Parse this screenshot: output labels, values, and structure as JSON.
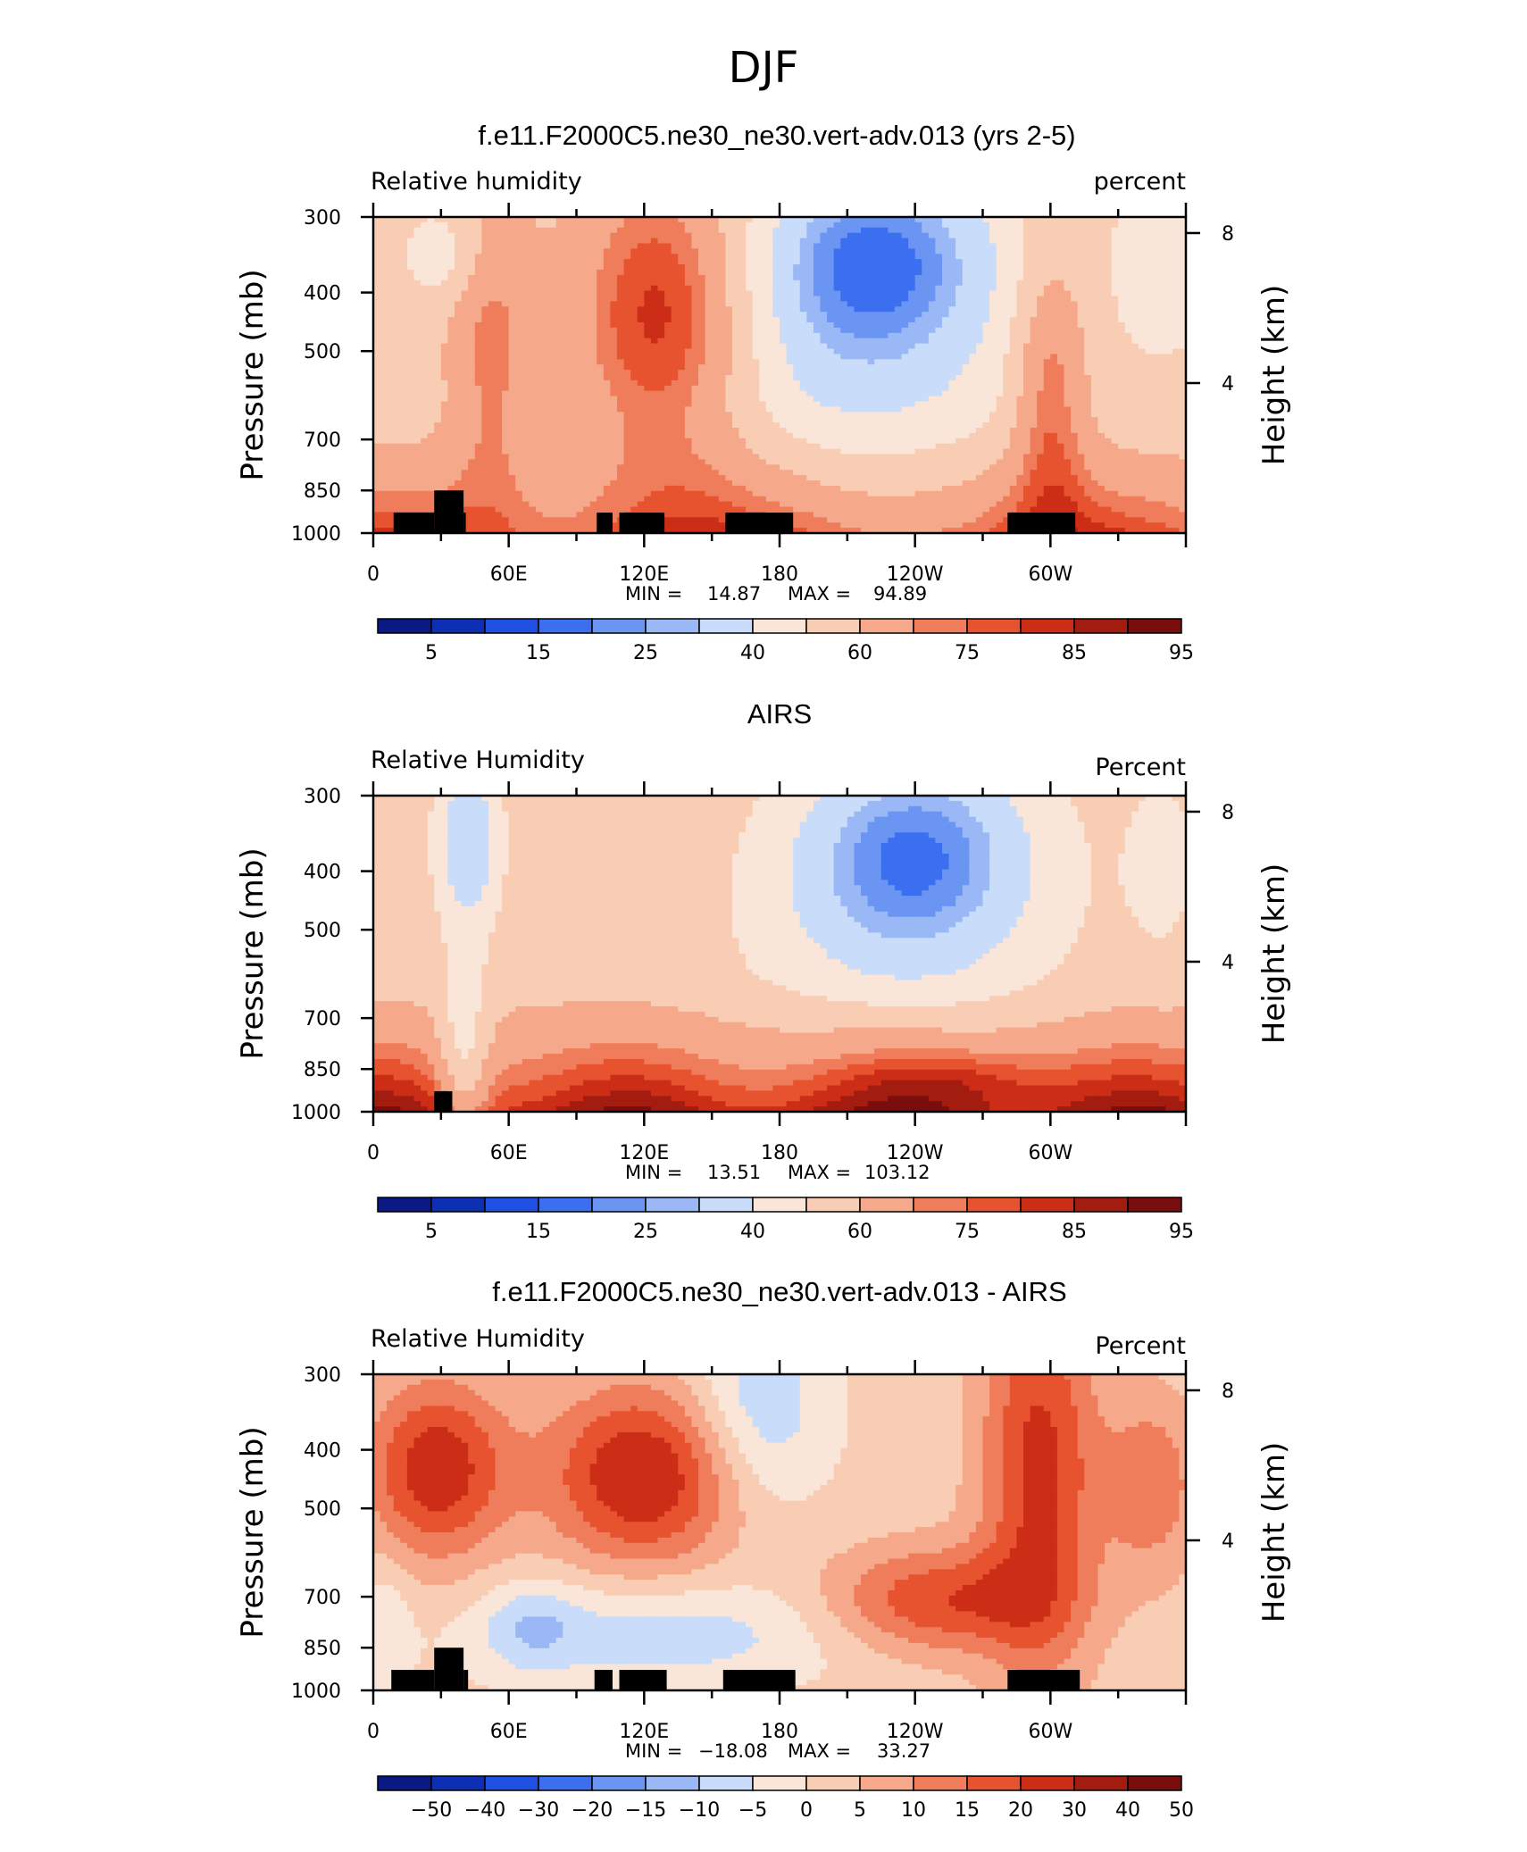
{
  "figure_title": "DJF",
  "colors": {
    "rh_palette": [
      "#0b1a82",
      "#0d2fb4",
      "#1f4fe3",
      "#3b6ff0",
      "#6b95f2",
      "#9ab8f5",
      "#c9dcfa",
      "#f9e6d9",
      "#f9cdb4",
      "#f5a98a",
      "#ef7c5a",
      "#e7532f",
      "#cc2d16",
      "#a21d10",
      "#7a0d0d"
    ]
  },
  "chart_data": [
    {
      "type": "heatmap",
      "title": "f.e11.F2000C5.ne30_ne30.vert-adv.013 (yrs 2-5)",
      "left_label": "Relative  humidity",
      "right_label": "percent",
      "ylabel": "Pressure  (mb)",
      "ylabel2": "Height  (km)",
      "x_ticks": [
        "0",
        "60E",
        "120E",
        "180",
        "120W",
        "60W"
      ],
      "x_tick_values": [
        0,
        60,
        120,
        180,
        240,
        300
      ],
      "xlim": [
        0,
        360
      ],
      "y_ticks": [
        "300",
        "400",
        "500",
        "700",
        "850",
        "1000"
      ],
      "y_tick_values": [
        300,
        400,
        500,
        700,
        850,
        1000
      ],
      "ylim": [
        1000,
        300
      ],
      "y2_ticks": [
        "4",
        "8"
      ],
      "y2_tick_values": [
        4,
        8
      ],
      "min_label": "MIN =",
      "min_value": "14.87",
      "max_label": "MAX =",
      "max_value": "94.89",
      "cbar_levels": [
        0,
        5,
        10,
        15,
        20,
        25,
        30,
        40,
        50,
        60,
        70,
        75,
        80,
        85,
        90,
        95
      ],
      "cbar_labels": [
        "5",
        "15",
        "25",
        "40",
        "60",
        "75",
        "85",
        "95"
      ],
      "cbar_label_values": [
        5,
        15,
        25,
        40,
        60,
        75,
        85,
        95
      ],
      "terrain": [
        [
          9,
          27,
          925
        ],
        [
          27,
          40,
          850
        ],
        [
          40,
          41,
          925
        ],
        [
          99,
          106,
          925
        ],
        [
          109,
          129,
          925
        ],
        [
          156,
          186,
          925
        ],
        [
          281,
          311,
          925
        ]
      ],
      "field": "model"
    },
    {
      "type": "heatmap",
      "title": "AIRS",
      "left_label": "Relative Humidity",
      "right_label": "Percent",
      "ylabel": "Pressure  (mb)",
      "ylabel2": "Height  (km)",
      "x_ticks": [
        "0",
        "60E",
        "120E",
        "180",
        "120W",
        "60W"
      ],
      "x_tick_values": [
        0,
        60,
        120,
        180,
        240,
        300
      ],
      "xlim": [
        0,
        360
      ],
      "y_ticks": [
        "300",
        "400",
        "500",
        "700",
        "850",
        "1000"
      ],
      "y_tick_values": [
        300,
        400,
        500,
        700,
        850,
        1000
      ],
      "ylim": [
        1000,
        300
      ],
      "y2_ticks": [
        "4",
        "8"
      ],
      "y2_tick_values": [
        4,
        8
      ],
      "min_label": "MIN =",
      "min_value": "13.51",
      "max_label": "MAX =",
      "max_value": "103.12",
      "cbar_levels": [
        0,
        5,
        10,
        15,
        20,
        25,
        30,
        40,
        50,
        60,
        70,
        75,
        80,
        85,
        90,
        95
      ],
      "cbar_labels": [
        "5",
        "15",
        "25",
        "40",
        "60",
        "75",
        "85",
        "95"
      ],
      "cbar_label_values": [
        5,
        15,
        25,
        40,
        60,
        75,
        85,
        95
      ],
      "terrain": [
        [
          27,
          35,
          925
        ]
      ],
      "field": "obs"
    },
    {
      "type": "heatmap",
      "title": "f.e11.F2000C5.ne30_ne30.vert-adv.013 - AIRS",
      "left_label": "Relative Humidity",
      "right_label": "Percent",
      "ylabel": "Pressure  (mb)",
      "ylabel2": "Height  (km)",
      "x_ticks": [
        "0",
        "60E",
        "120E",
        "180",
        "120W",
        "60W"
      ],
      "x_tick_values": [
        0,
        60,
        120,
        180,
        240,
        300
      ],
      "xlim": [
        0,
        360
      ],
      "y_ticks": [
        "300",
        "400",
        "500",
        "700",
        "850",
        "1000"
      ],
      "y_tick_values": [
        300,
        400,
        500,
        700,
        850,
        1000
      ],
      "ylim": [
        1000,
        300
      ],
      "y2_ticks": [
        "4",
        "8"
      ],
      "y2_tick_values": [
        4,
        8
      ],
      "min_label": "MIN =",
      "min_value": "−18.08",
      "max_label": "MAX =",
      "max_value": "33.27",
      "cbar_levels": [
        -60,
        -50,
        -40,
        -30,
        -20,
        -15,
        -10,
        -5,
        0,
        5,
        10,
        15,
        20,
        30,
        40,
        50
      ],
      "cbar_labels": [
        "−50",
        "−40",
        "−30",
        "−20",
        "−15",
        "−10",
        "−5",
        "0",
        "5",
        "10",
        "15",
        "20",
        "30",
        "40",
        "50"
      ],
      "cbar_label_values": [
        -50,
        -40,
        -30,
        -20,
        -15,
        -10,
        -5,
        0,
        5,
        10,
        15,
        20,
        30,
        40,
        50
      ],
      "terrain": [
        [
          8,
          27,
          925
        ],
        [
          27,
          40,
          850
        ],
        [
          40,
          42,
          925
        ],
        [
          98,
          106,
          925
        ],
        [
          109,
          130,
          925
        ],
        [
          155,
          187,
          925
        ],
        [
          281,
          313,
          925
        ]
      ],
      "field": "diff"
    }
  ]
}
